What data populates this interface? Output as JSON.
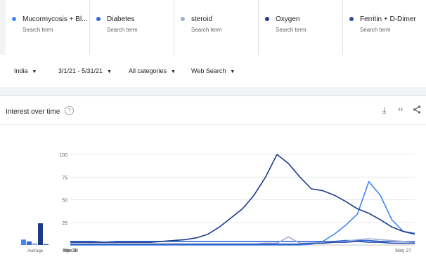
{
  "terms": [
    {
      "label": "Mucormycosis + Bl...",
      "sub": "Search term",
      "color": "#4285f4"
    },
    {
      "label": "Diabetes",
      "sub": "Search term",
      "color": "#3367d6"
    },
    {
      "label": "steroid",
      "sub": "Search term",
      "color": "#9eaed6"
    },
    {
      "label": "Oxygen",
      "sub": "Search term",
      "color": "#1a3a8a"
    },
    {
      "label": "Ferritin + D-Dimer",
      "sub": "Search term",
      "color": "#2a4fa8"
    }
  ],
  "filters": {
    "region": "India",
    "dates": "3/1/21 - 5/31/21",
    "category": "All categories",
    "search_type": "Web Search"
  },
  "card": {
    "title": "Interest over time",
    "help_icon": "help-circle-icon",
    "download_icon": "download-icon",
    "embed_icon": "embed-code-icon",
    "share_icon": "share-icon"
  },
  "chart_data": {
    "type": "line",
    "x": [
      "Mar 1",
      "Mar 4",
      "Mar 7",
      "Mar 10",
      "Mar 13",
      "Mar 16",
      "Mar 19",
      "Mar 22",
      "Mar 25",
      "Mar 28",
      "Mar 31",
      "Apr 3",
      "Apr 6",
      "Apr 9",
      "Apr 12",
      "Apr 15",
      "Apr 18",
      "Apr 21",
      "Apr 24",
      "Apr 27",
      "Apr 30",
      "May 3",
      "May 6",
      "May 9",
      "May 12",
      "May 15",
      "May 18",
      "May 21",
      "May 24",
      "May 27",
      "May 30"
    ],
    "x_tick_labels": [
      "Mar 1",
      "Mar 30",
      "Apr 28",
      "May 27"
    ],
    "ylim": [
      0,
      100
    ],
    "y_ticks": [
      25,
      50,
      75,
      100
    ],
    "average_label": "Average",
    "average_bars": [
      {
        "series": "Mucormycosis + Bl...",
        "value": 6
      },
      {
        "series": "Diabetes",
        "value": 4
      },
      {
        "series": "steroid",
        "value": 2
      },
      {
        "series": "Oxygen",
        "value": 24
      },
      {
        "series": "Ferritin + D-Dimer",
        "value": 1
      }
    ],
    "series": [
      {
        "name": "Mucormycosis + Bl...",
        "color": "#4285f4",
        "values": [
          0,
          0,
          0,
          0,
          0,
          0,
          0,
          0,
          0,
          0,
          0,
          0,
          0,
          0,
          0,
          0,
          0,
          0,
          0,
          0,
          0,
          1,
          4,
          12,
          22,
          34,
          70,
          55,
          28,
          15,
          13
        ]
      },
      {
        "name": "Diabetes",
        "color": "#3367d6",
        "values": [
          4,
          4,
          4,
          3,
          4,
          4,
          4,
          4,
          4,
          4,
          4,
          4,
          4,
          4,
          4,
          4,
          4,
          4,
          4,
          4,
          4,
          4,
          4,
          4,
          5,
          5,
          5,
          4,
          4,
          4,
          4
        ]
      },
      {
        "name": "steroid",
        "color": "#9eaed6",
        "values": [
          1,
          1,
          1,
          1,
          1,
          1,
          1,
          1,
          1,
          1,
          1,
          1,
          1,
          1,
          1,
          1,
          1,
          2,
          2,
          9,
          2,
          2,
          3,
          3,
          4,
          6,
          7,
          6,
          5,
          4,
          3
        ]
      },
      {
        "name": "Oxygen",
        "color": "#1a3a8a",
        "values": [
          3,
          3,
          3,
          3,
          3,
          3,
          3,
          3,
          4,
          5,
          6,
          8,
          12,
          20,
          30,
          40,
          55,
          75,
          100,
          90,
          75,
          62,
          60,
          55,
          48,
          40,
          35,
          28,
          20,
          15,
          12
        ]
      },
      {
        "name": "Ferritin + D-Dimer",
        "color": "#2a4fa8",
        "values": [
          1,
          1,
          1,
          1,
          1,
          1,
          1,
          1,
          1,
          1,
          1,
          1,
          1,
          1,
          1,
          1,
          1,
          1,
          1,
          1,
          1,
          2,
          2,
          3,
          3,
          4,
          3,
          3,
          2,
          2,
          2
        ]
      }
    ]
  }
}
